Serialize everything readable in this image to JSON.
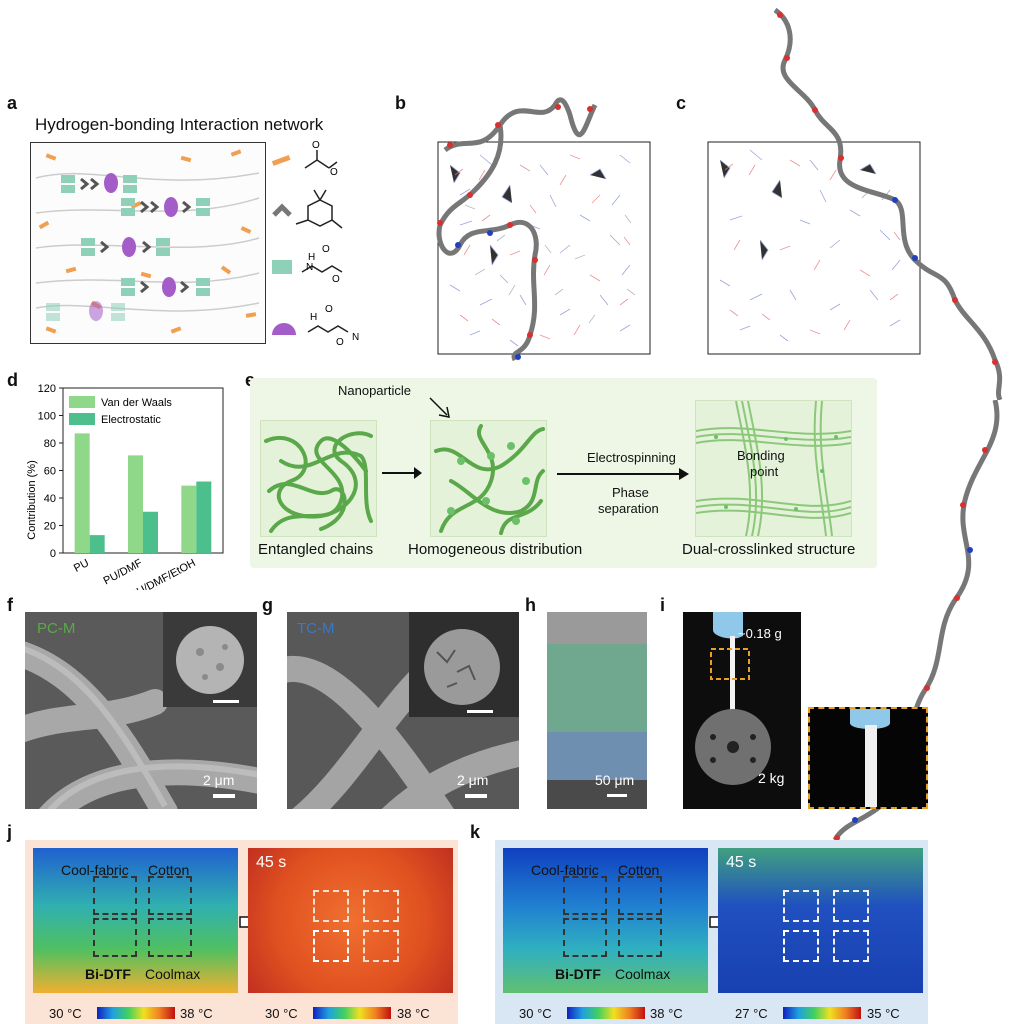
{
  "panels": {
    "a": "a",
    "b": "b",
    "c": "c",
    "d": "d",
    "e": "e",
    "f": "f",
    "g": "g",
    "h": "h",
    "i": "i",
    "j": "j",
    "k": "k"
  },
  "panel_a": {
    "title": "Hydrogen-bonding Interaction network",
    "legend": [
      "ester-group",
      "cyclohexyl-group",
      "urethane-group",
      "oxamide-group"
    ]
  },
  "panel_d": {
    "ylabel": "Contribution (%)",
    "legend": [
      "Van der Waals",
      "Electrostatic"
    ]
  },
  "chart_data": {
    "type": "bar",
    "categories": [
      "PU",
      "PU/DMF",
      "PU/DMF/EtOH"
    ],
    "series": [
      {
        "name": "Van der Waals",
        "values": [
          87,
          71,
          49
        ]
      },
      {
        "name": "Electrostatic",
        "values": [
          13,
          30,
          52
        ]
      }
    ],
    "ylabel": "Contribution (%)",
    "ylim": [
      0,
      120
    ],
    "yticks": [
      0,
      20,
      40,
      60,
      80,
      100,
      120
    ],
    "colors": [
      "#8fd88a",
      "#4cbf8c"
    ]
  },
  "panel_e": {
    "nanoparticle": "Nanoparticle",
    "step1": "Entangled chains",
    "step2": "Homogeneous distribution",
    "step3": "Dual-crosslinked structure",
    "process1": "Electrospinning",
    "process2a": "Phase",
    "process2b": "separation",
    "bonding1": "Bonding",
    "bonding2": "point"
  },
  "panel_f": {
    "tag": "PC-M",
    "scale": "2 μm"
  },
  "panel_g": {
    "tag": "TC-M",
    "scale": "2 μm"
  },
  "panel_h": {
    "scale": "50 μm"
  },
  "panel_i": {
    "load_top": "~0.18 g",
    "load_bottom": "2 kg"
  },
  "panel_j": {
    "labels": [
      "Cool-fabric",
      "Cotton",
      "Bi-DTF",
      "Coolmax"
    ],
    "time": "45 s",
    "scale_left": [
      "30 °C",
      "38 °C"
    ],
    "scale_right": [
      "30 °C",
      "38 °C"
    ]
  },
  "panel_k": {
    "labels": [
      "Cool-fabric",
      "Cotton",
      "Bi-DTF",
      "Coolmax"
    ],
    "time": "45 s",
    "scale_left": [
      "30 °C",
      "38 °C"
    ],
    "scale_right": [
      "27 °C",
      "35 °C"
    ]
  },
  "colors": {
    "green_chain": "#5aa84a",
    "teal_block": "#8fd0b8",
    "purple": "#a35cc8",
    "orange": "#f0a050",
    "panel_e_bg": "#eef6e6",
    "panel_j_bg": "#fbe3d6",
    "panel_k_bg": "#d9e6f4"
  }
}
